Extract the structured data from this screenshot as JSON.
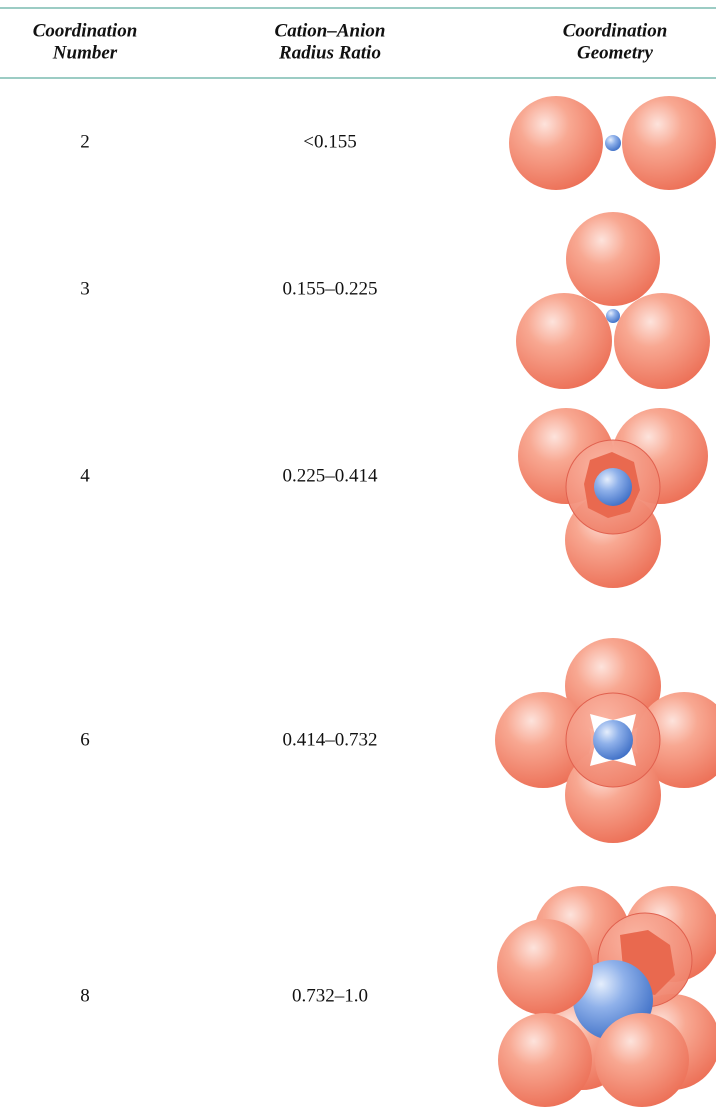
{
  "header": {
    "columns": [
      [
        "Coordination",
        "Number"
      ],
      [
        "Cation–Anion",
        "Radius Ratio"
      ],
      [
        "Coordination",
        "Geometry"
      ]
    ]
  },
  "table": {
    "rows": [
      [
        "2",
        "<0.155"
      ],
      [
        "3",
        "0.155–0.225"
      ],
      [
        "4",
        "0.225–0.414"
      ],
      [
        "6",
        "0.414–0.732"
      ],
      [
        "8",
        "0.732–1.0"
      ]
    ]
  }
}
